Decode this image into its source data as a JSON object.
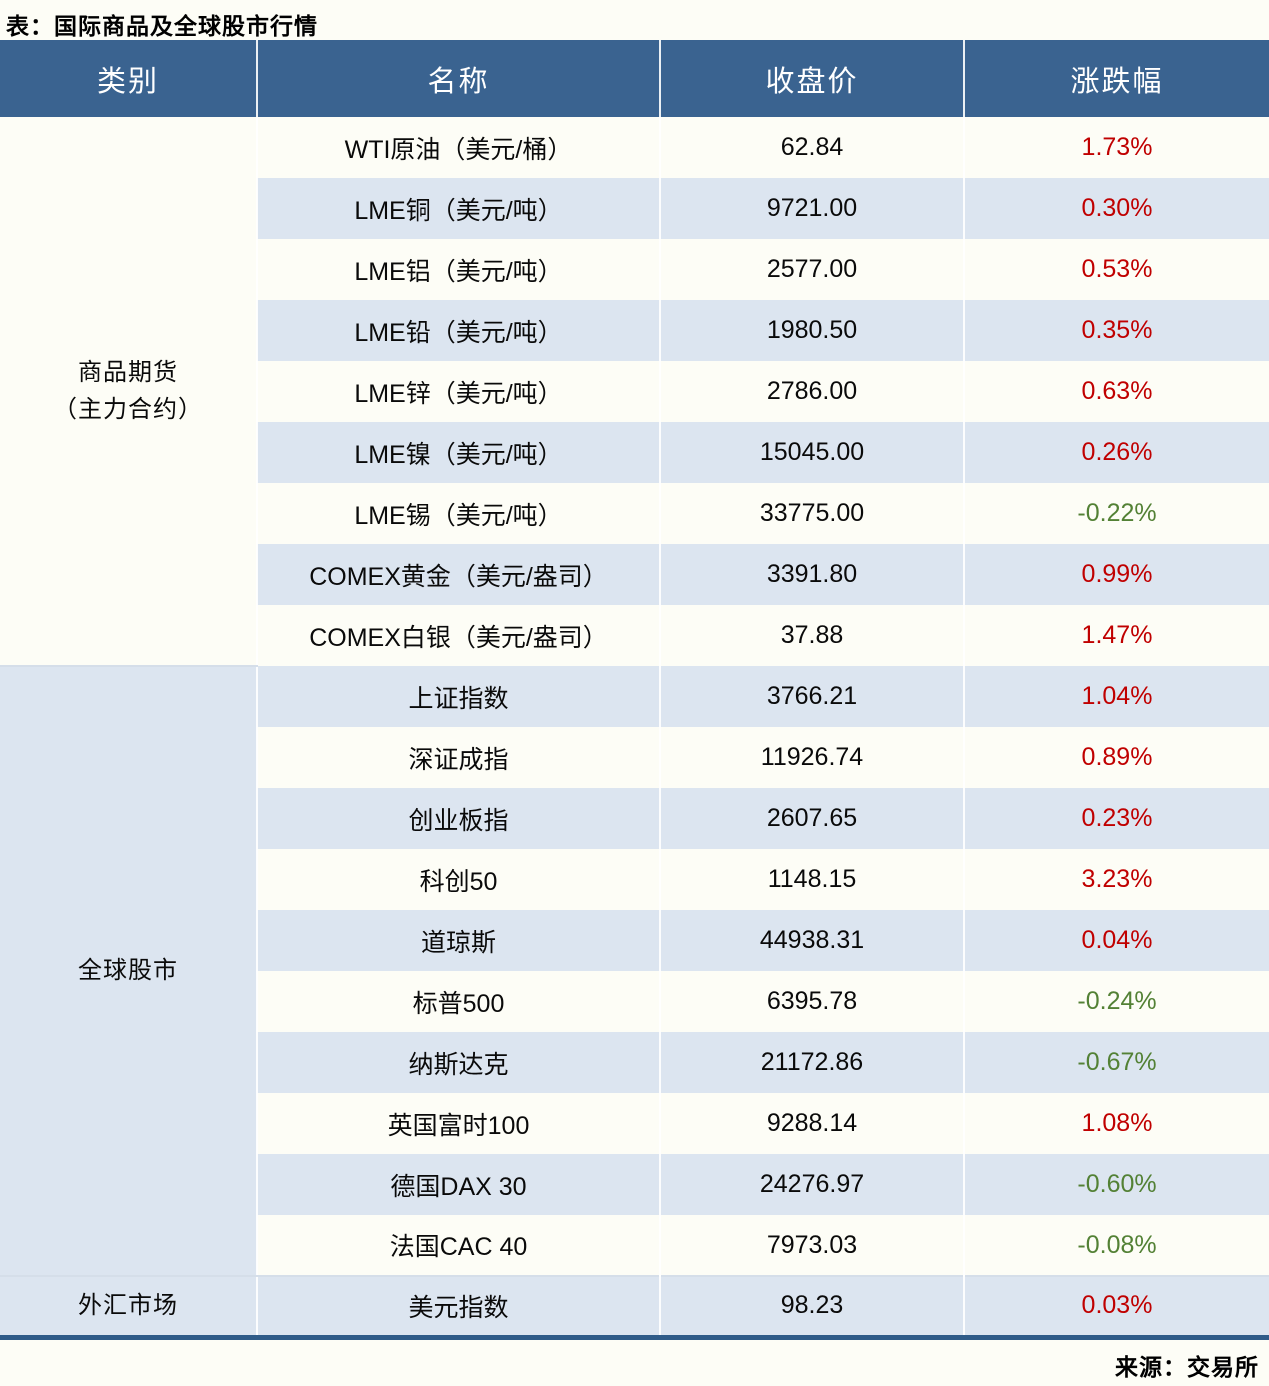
{
  "title": "表：国际商品及全球股市行情",
  "header": {
    "category": "类别",
    "name": "名称",
    "close": "收盘价",
    "change": "涨跌幅"
  },
  "sections": [
    {
      "category_lines": [
        "商品期货",
        "（主力合约）"
      ],
      "rows": [
        {
          "name": "WTI原油（美元/桶）",
          "close": "62.84",
          "change": "1.73%",
          "direction": "up"
        },
        {
          "name": "LME铜（美元/吨）",
          "close": "9721.00",
          "change": "0.30%",
          "direction": "up"
        },
        {
          "name": "LME铝（美元/吨）",
          "close": "2577.00",
          "change": "0.53%",
          "direction": "up"
        },
        {
          "name": "LME铅（美元/吨）",
          "close": "1980.50",
          "change": "0.35%",
          "direction": "up"
        },
        {
          "name": "LME锌（美元/吨）",
          "close": "2786.00",
          "change": "0.63%",
          "direction": "up"
        },
        {
          "name": "LME镍（美元/吨）",
          "close": "15045.00",
          "change": "0.26%",
          "direction": "up"
        },
        {
          "name": "LME锡（美元/吨）",
          "close": "33775.00",
          "change": "-0.22%",
          "direction": "down"
        },
        {
          "name": "COMEX黄金（美元/盎司）",
          "close": "3391.80",
          "change": "0.99%",
          "direction": "up"
        },
        {
          "name": "COMEX白银（美元/盎司）",
          "close": "37.88",
          "change": "1.47%",
          "direction": "up"
        }
      ]
    },
    {
      "category_lines": [
        "全球股市"
      ],
      "rows": [
        {
          "name": "上证指数",
          "close": "3766.21",
          "change": "1.04%",
          "direction": "up"
        },
        {
          "name": "深证成指",
          "close": "11926.74",
          "change": "0.89%",
          "direction": "up"
        },
        {
          "name": "创业板指",
          "close": "2607.65",
          "change": "0.23%",
          "direction": "up"
        },
        {
          "name": "科创50",
          "close": "1148.15",
          "change": "3.23%",
          "direction": "up"
        },
        {
          "name": "道琼斯",
          "close": "44938.31",
          "change": "0.04%",
          "direction": "up"
        },
        {
          "name": "标普500",
          "close": "6395.78",
          "change": "-0.24%",
          "direction": "down"
        },
        {
          "name": "纳斯达克",
          "close": "21172.86",
          "change": "-0.67%",
          "direction": "down"
        },
        {
          "name": "英国富时100",
          "close": "9288.14",
          "change": "1.08%",
          "direction": "up"
        },
        {
          "name": "德国DAX 30",
          "close": "24276.97",
          "change": "-0.60%",
          "direction": "down"
        },
        {
          "name": "法国CAC 40",
          "close": "7973.03",
          "change": "-0.08%",
          "direction": "down"
        }
      ]
    },
    {
      "category_lines": [
        "外汇市场"
      ],
      "rows": [
        {
          "name": "美元指数",
          "close": "98.23",
          "change": "0.03%",
          "direction": "up"
        }
      ]
    }
  ],
  "footer": {
    "source": "来源：交易所"
  },
  "colors": {
    "header_bg": "#3a6390",
    "alt_row_bg": "#dce5f0",
    "paper_bg": "#fdfdf6",
    "up_red": "#c00000",
    "down_green": "#538135",
    "bottom_border": "#2f5b88",
    "section_divider": "#d5dee9"
  }
}
